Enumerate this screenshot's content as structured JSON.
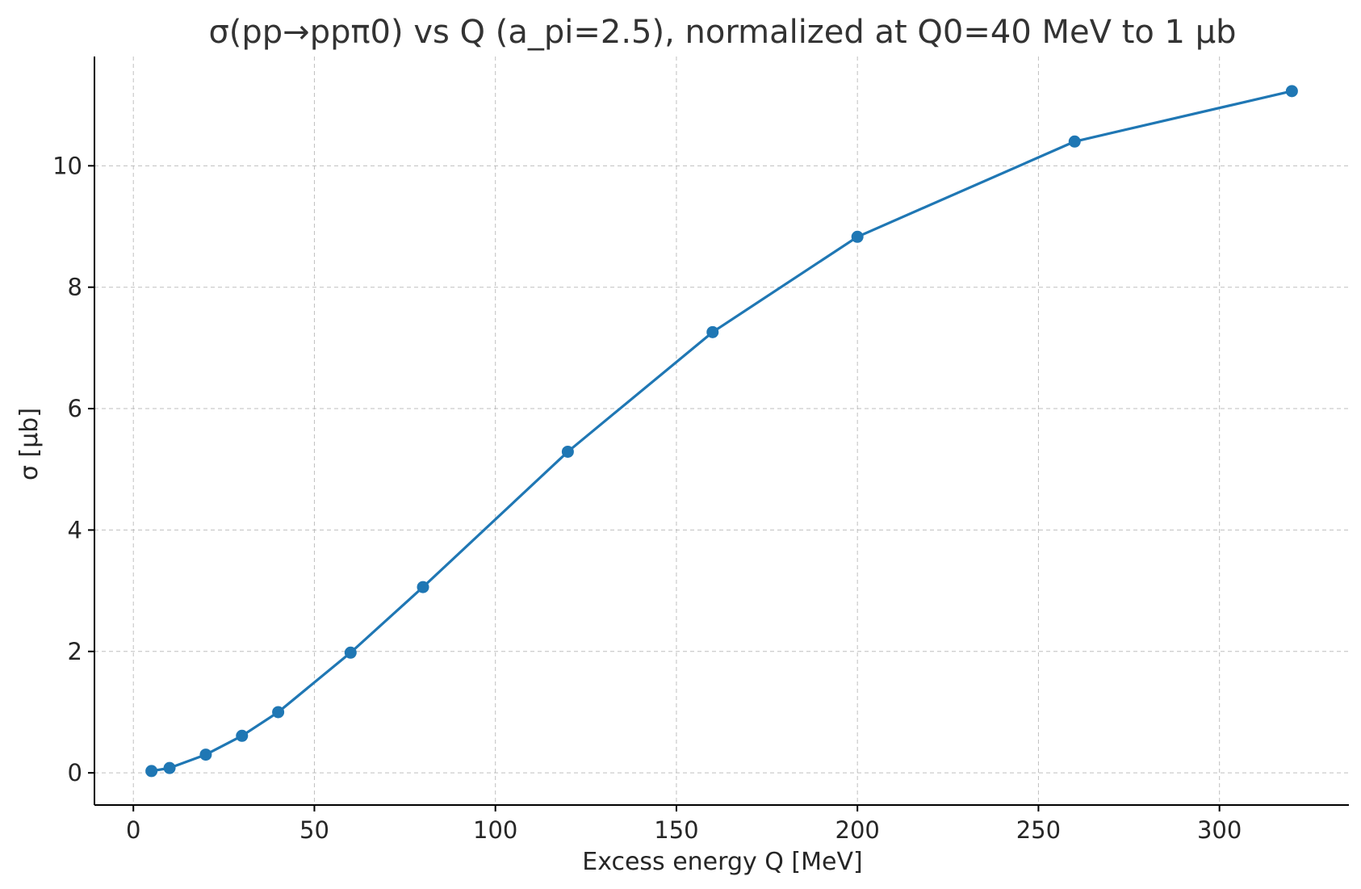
{
  "chart_data": {
    "type": "line",
    "title": "σ(pp→ppπ0) vs Q (a_pi=2.5), normalized at Q0=40 MeV to 1 μb",
    "xlabel": "Excess energy Q [MeV]",
    "ylabel": "σ [μb]",
    "xlim": [
      -10.75,
      335.75
    ],
    "ylim": [
      -0.53,
      11.8
    ],
    "xticks": [
      0,
      50,
      100,
      150,
      200,
      250,
      300
    ],
    "yticks": [
      0,
      2,
      4,
      6,
      8,
      10
    ],
    "grid": true,
    "legend": "none",
    "series": [
      {
        "color": "#1f77b4",
        "marker": "circle",
        "x": [
          5,
          10,
          20,
          30,
          40,
          60,
          80,
          120,
          160,
          200,
          260,
          320
        ],
        "y": [
          0.03,
          0.08,
          0.3,
          0.61,
          1.0,
          1.98,
          3.06,
          5.29,
          7.26,
          8.83,
          10.4,
          11.23
        ]
      }
    ]
  }
}
